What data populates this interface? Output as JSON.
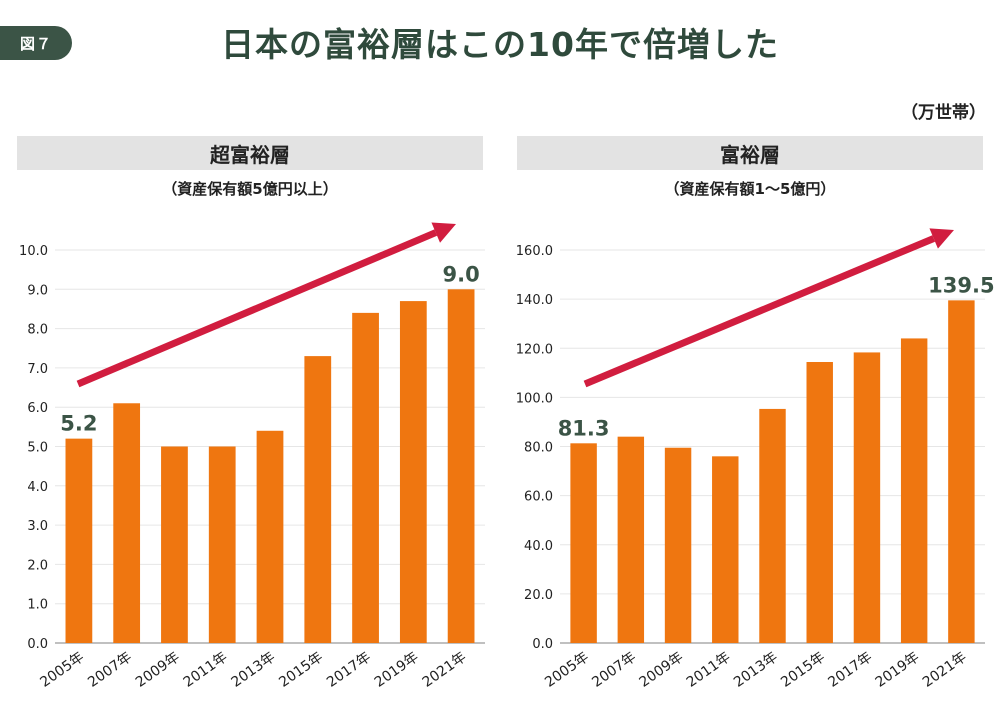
{
  "figure_label": "図７",
  "title": "日本の富裕層はこの10年で倍増した",
  "unit": "（万世帯）",
  "colors": {
    "bar": "#ef7610",
    "arrow": "#d11d3f",
    "badge": "#3b5446",
    "header_bg": "#e3e3e3",
    "grid": "#e6e6e6",
    "axis": "#9a9a9a"
  },
  "chart_data": [
    {
      "type": "bar",
      "title": "超富裕層",
      "subtitle": "（資産保有額5億円以上）",
      "categories": [
        "2005年",
        "2007年",
        "2009年",
        "2011年",
        "2013年",
        "2015年",
        "2017年",
        "2019年",
        "2021年"
      ],
      "values": [
        5.2,
        6.1,
        5.0,
        5.0,
        5.4,
        7.3,
        8.4,
        8.7,
        9.0
      ],
      "ylim": [
        0,
        10
      ],
      "yticks": [
        "0.0",
        "1.0",
        "2.0",
        "3.0",
        "4.0",
        "5.0",
        "6.0",
        "7.0",
        "8.0",
        "9.0",
        "10.0"
      ],
      "labeled_points": [
        {
          "index": 0,
          "label": "5.2"
        },
        {
          "index": 8,
          "label": "9.0"
        }
      ],
      "trend_arrow": true,
      "grid": true
    },
    {
      "type": "bar",
      "title": "富裕層",
      "subtitle": "（資産保有額1～5億円）",
      "categories": [
        "2005年",
        "2007年",
        "2009年",
        "2011年",
        "2013年",
        "2015年",
        "2017年",
        "2019年",
        "2021年"
      ],
      "values": [
        81.3,
        84.0,
        79.5,
        76.0,
        95.3,
        114.4,
        118.3,
        124.0,
        139.5
      ],
      "ylim": [
        0,
        160
      ],
      "yticks": [
        "0.0",
        "20.0",
        "40.0",
        "60.0",
        "80.0",
        "100.0",
        "120.0",
        "140.0",
        "160.0"
      ],
      "labeled_points": [
        {
          "index": 0,
          "label": "81.3"
        },
        {
          "index": 8,
          "label": "139.5"
        }
      ],
      "trend_arrow": true,
      "grid": true
    }
  ]
}
